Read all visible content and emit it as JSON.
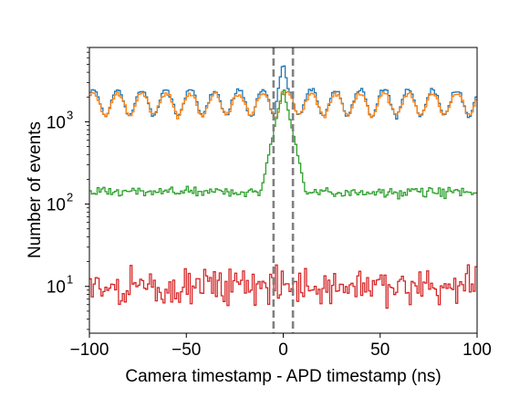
{
  "chart_data": {
    "type": "line",
    "xlabel": "Camera timestamp - APD timestamp (ns)",
    "ylabel": "Number of events",
    "xlim": [
      -100,
      100
    ],
    "ylim": [
      2.7,
      8000
    ],
    "yscale": "log",
    "x_ticks": [
      -100,
      -50,
      0,
      50,
      100
    ],
    "x_tick_labels": [
      "−100",
      "−50",
      "0",
      "50",
      "100"
    ],
    "y_ticks": [
      {
        "value": 10,
        "base": "10",
        "exp": "1"
      },
      {
        "value": 100,
        "base": "10",
        "exp": "2"
      },
      {
        "value": 1000,
        "base": "10",
        "exp": "3"
      }
    ],
    "bin_width": 1,
    "vlines": [
      -5,
      5
    ],
    "colors": {
      "blue": "#1f77b4",
      "orange": "#ff7f0e",
      "green": "#2ca02c",
      "red": "#d62728",
      "vline": "#808080"
    },
    "series_shapes": {
      "blue": {
        "baseline_mean": 1800,
        "oscillation_amplitude": 0.35,
        "oscillation_period_ns": 12.5,
        "peak": {
          "center": 0,
          "height": 5500,
          "width_ns": 3
        }
      },
      "orange": {
        "baseline_mean": 1700,
        "oscillation_amplitude": 0.3,
        "oscillation_period_ns": 12.5,
        "peak": {
          "center": 0,
          "height": 2600,
          "width_ns": 3
        }
      },
      "green": {
        "baseline_mean": 140,
        "peak": {
          "center": 0,
          "height": 2600,
          "width_ns": 4
        }
      },
      "red": {
        "baseline_mean": 10,
        "range": [
          4.5,
          20
        ]
      }
    }
  }
}
